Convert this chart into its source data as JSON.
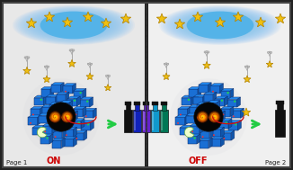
{
  "bg_color": "#222222",
  "panel_bg_left": "#e8e8e8",
  "panel_bg_right": "#f0f0f0",
  "border_color": "#333333",
  "title_left": "Page 1",
  "title_right": "Page 2",
  "label_on": "ON",
  "label_off": "OFF",
  "on_color": "#cc0000",
  "off_color": "#cc0000",
  "divider_color": "#333333",
  "star_color": "#f0c010",
  "star_outline": "#b08000",
  "arrow_color": "#22cc44",
  "vial_colors_on": [
    "#111111",
    "#1122bb",
    "#6622cc",
    "#1199cc",
    "#007755"
  ],
  "vial_color_off": "#111111",
  "polymer_blue": "#1a6fd4",
  "polymer_blue2": "#2288ee",
  "polymer_dark": "#0a2a6a",
  "polymer_green": "#22cc55",
  "core_dark": "#0a0a0a",
  "red_curve_color": "#cc1111",
  "moon_color": "#aaffaa",
  "sky_blue": "#4ab0e8",
  "sky_edge": "#c8e8f8",
  "glow_color": "#c8cdd5"
}
